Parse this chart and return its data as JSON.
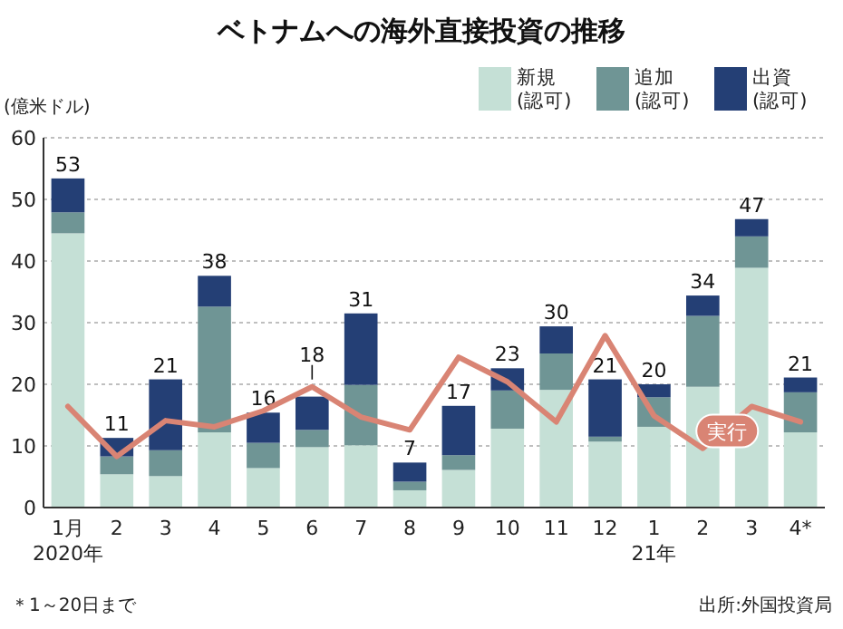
{
  "chart_data": {
    "type": "bar",
    "title": "ベトナムへの海外直接投資の推移",
    "ylabel": "(億米ドル)",
    "categories": [
      "1月\n2020年",
      "2",
      "3",
      "4",
      "5",
      "6",
      "7",
      "8",
      "9",
      "10",
      "11",
      "12",
      "1\n21年",
      "2",
      "3",
      "4*"
    ],
    "stacked": true,
    "series": [
      {
        "name": "新規\n(認可)",
        "color": "#c5e0d6",
        "values": [
          44.5,
          5.4,
          5.1,
          12.2,
          6.4,
          9.8,
          10.1,
          2.8,
          6.1,
          12.8,
          19.1,
          10.7,
          13.1,
          19.6,
          38.9,
          12.2
        ]
      },
      {
        "name": "追加\n(認可)",
        "color": "#6f9595",
        "values": [
          3.4,
          2.9,
          4.2,
          20.4,
          4.1,
          2.8,
          9.8,
          1.4,
          2.4,
          6.2,
          5.9,
          0.8,
          4.8,
          11.5,
          5.1,
          6.5
        ]
      },
      {
        "name": "出資\n(認可)",
        "color": "#243f75",
        "values": [
          5.5,
          3.0,
          11.5,
          5.0,
          4.9,
          5.4,
          11.6,
          3.1,
          8.0,
          3.6,
          4.4,
          9.3,
          2.1,
          3.3,
          2.8,
          2.4
        ]
      },
      {
        "name": "実行",
        "type": "line",
        "color": "#d98474",
        "values": [
          16.4,
          8.3,
          14.1,
          13.1,
          15.7,
          19.6,
          14.7,
          12.6,
          24.4,
          20.4,
          13.9,
          27.9,
          14.9,
          9.6,
          16.4,
          13.9
        ]
      }
    ],
    "totals": [
      "53",
      "11",
      "21",
      "38",
      "16",
      "18",
      "31",
      "7",
      "17",
      "23",
      "30",
      "21",
      "20",
      "34",
      "47",
      "21"
    ],
    "ylim": [
      0,
      60
    ],
    "yticks": [
      0,
      10,
      20,
      30,
      40,
      50,
      60
    ],
    "grid": "y",
    "legend": "top right",
    "annotations": [
      "＊1～20日まで",
      "出所:外国投資局"
    ]
  }
}
